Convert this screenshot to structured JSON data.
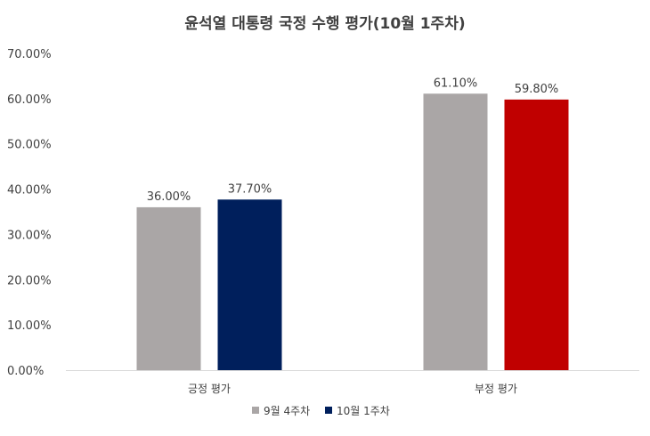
{
  "chart_data": {
    "type": "bar",
    "title": "윤석열 대통령 국정 수행 평가(10월 1주차)",
    "categories": [
      "긍정 평가",
      "부정 평가"
    ],
    "series": [
      {
        "name": "9월 4주차",
        "values": [
          36.0,
          61.1
        ],
        "labels": [
          "36.00%",
          "61.10%"
        ],
        "colors": [
          "#aaa6a6",
          "#aaa6a6"
        ],
        "legend_color": "#aaa6a6"
      },
      {
        "name": "10월 1주차",
        "values": [
          37.7,
          59.8
        ],
        "labels": [
          "37.70%",
          "59.80%"
        ],
        "colors": [
          "#001f5c",
          "#c00000"
        ],
        "legend_color": "#001f5c"
      }
    ],
    "y_ticks": [
      "0.00%",
      "10.00%",
      "20.00%",
      "30.00%",
      "40.00%",
      "50.00%",
      "60.00%",
      "70.00%"
    ],
    "ylim": [
      0,
      70
    ],
    "xlabel": "",
    "ylabel": "",
    "grid": false,
    "legend": "bottom"
  }
}
